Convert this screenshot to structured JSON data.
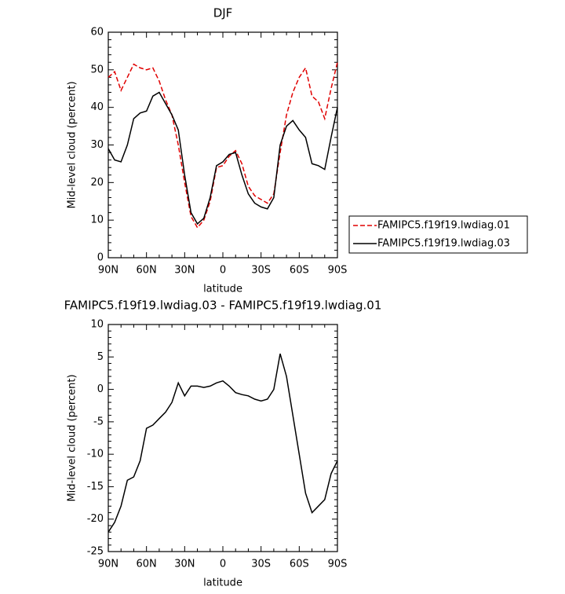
{
  "chart_data": [
    {
      "type": "line",
      "title": "DJF",
      "xlabel": "latitude",
      "ylabel": "Mid-level cloud (percent)",
      "x": [
        90,
        85,
        80,
        75,
        70,
        65,
        60,
        55,
        50,
        45,
        40,
        35,
        30,
        25,
        20,
        15,
        10,
        5,
        0,
        -5,
        -10,
        -15,
        -20,
        -25,
        -30,
        -35,
        -40,
        -45,
        -50,
        -55,
        -60,
        -65,
        -70,
        -75,
        -80,
        -85,
        -90
      ],
      "xlim": [
        90,
        -90
      ],
      "xticks": [
        {
          "value": 90,
          "label": "90N"
        },
        {
          "value": 60,
          "label": "60N"
        },
        {
          "value": 30,
          "label": "30N"
        },
        0,
        {
          "value": -30,
          "label": "30S"
        },
        {
          "value": -60,
          "label": "60S"
        },
        {
          "value": -90,
          "label": "90S"
        }
      ],
      "ylim": [
        0,
        60
      ],
      "yticks": [
        0,
        10,
        20,
        30,
        40,
        50,
        60
      ],
      "legend": "right",
      "series": [
        {
          "name": "FAMIPC5.f19f19.lwdiag.01",
          "color": "#e00000",
          "dashed": true,
          "values": [
            48,
            49.5,
            44.5,
            48,
            51.5,
            50.5,
            50,
            50.5,
            47,
            42,
            38,
            30,
            20,
            11,
            8,
            10,
            15,
            24,
            24.5,
            27,
            28.5,
            25,
            19,
            16.5,
            15.5,
            14.5,
            17,
            28,
            38,
            44,
            48,
            50.5,
            43,
            41.5,
            37,
            45,
            52
          ]
        },
        {
          "name": "FAMIPC5.f19f19.lwdiag.03",
          "color": "#000000",
          "dashed": false,
          "values": [
            29,
            26,
            25.5,
            30,
            37,
            38.5,
            39,
            43,
            44,
            41,
            38,
            34,
            22,
            12,
            9,
            10.5,
            16,
            24.5,
            25.5,
            27.5,
            28,
            22,
            17,
            14.5,
            13.5,
            13,
            16,
            30,
            35,
            36.5,
            34,
            32,
            25,
            24.5,
            23.5,
            32,
            40
          ]
        }
      ]
    },
    {
      "type": "line",
      "title": "FAMIPC5.f19f19.lwdiag.03 - FAMIPC5.f19f19.lwdiag.01",
      "xlabel": "latitude",
      "ylabel": "Mid-level cloud (percent)",
      "x": [
        90,
        85,
        80,
        75,
        70,
        65,
        60,
        55,
        50,
        45,
        40,
        35,
        30,
        25,
        20,
        15,
        10,
        5,
        0,
        -5,
        -10,
        -15,
        -20,
        -25,
        -30,
        -35,
        -40,
        -45,
        -50,
        -55,
        -60,
        -65,
        -70,
        -75,
        -80,
        -85,
        -90
      ],
      "xlim": [
        90,
        -90
      ],
      "xticks": [
        {
          "value": 90,
          "label": "90N"
        },
        {
          "value": 60,
          "label": "60N"
        },
        {
          "value": 30,
          "label": "30N"
        },
        0,
        {
          "value": -30,
          "label": "30S"
        },
        {
          "value": -60,
          "label": "60S"
        },
        {
          "value": -90,
          "label": "90S"
        }
      ],
      "ylim": [
        -25,
        10
      ],
      "yticks": [
        -25,
        -20,
        -15,
        -10,
        -5,
        0,
        5,
        10
      ],
      "color": "#000000",
      "values": [
        -22,
        -20.5,
        -18,
        -14,
        -13.5,
        -11,
        -6,
        -5.5,
        -4.5,
        -3.5,
        -2,
        1,
        -1,
        0.5,
        0.5,
        0.3,
        0.5,
        1,
        1.3,
        0.5,
        -0.5,
        -0.8,
        -1,
        -1.5,
        -1.8,
        -1.5,
        0,
        5.5,
        2,
        -4,
        -10,
        -16,
        -19,
        -18,
        -17,
        -13,
        -11
      ]
    }
  ]
}
